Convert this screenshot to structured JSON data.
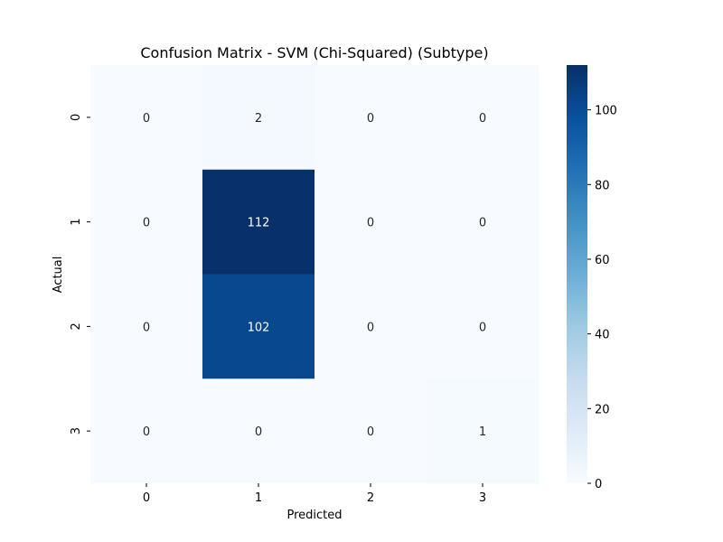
{
  "chart_data": {
    "type": "heatmap",
    "title": "Confusion Matrix - SVM (Chi-Squared) (Subtype)",
    "xlabel": "Predicted",
    "ylabel": "Actual",
    "x_categories": [
      "0",
      "1",
      "2",
      "3"
    ],
    "y_categories": [
      "0",
      "1",
      "2",
      "3"
    ],
    "values": [
      [
        0,
        2,
        0,
        0
      ],
      [
        0,
        112,
        0,
        0
      ],
      [
        0,
        102,
        0,
        0
      ],
      [
        0,
        0,
        0,
        1
      ]
    ],
    "colormap": "Blues",
    "colorbar": {
      "range": [
        0,
        112
      ],
      "ticks": [
        0,
        20,
        40,
        60,
        80,
        100
      ],
      "tick_labels": [
        "0",
        "20",
        "40",
        "60",
        "80",
        "100"
      ]
    },
    "grid": false
  }
}
